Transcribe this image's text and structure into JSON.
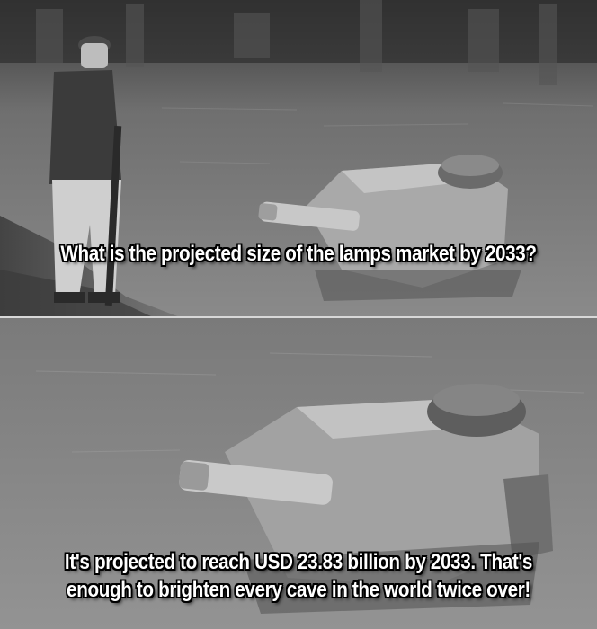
{
  "meme": {
    "top_caption": "What is the projected size of the lamps market by 2033?",
    "bottom_caption": "It's projected to reach USD 23.83 billion by 2033. That's enough to brighten every cave in the world twice over!"
  }
}
